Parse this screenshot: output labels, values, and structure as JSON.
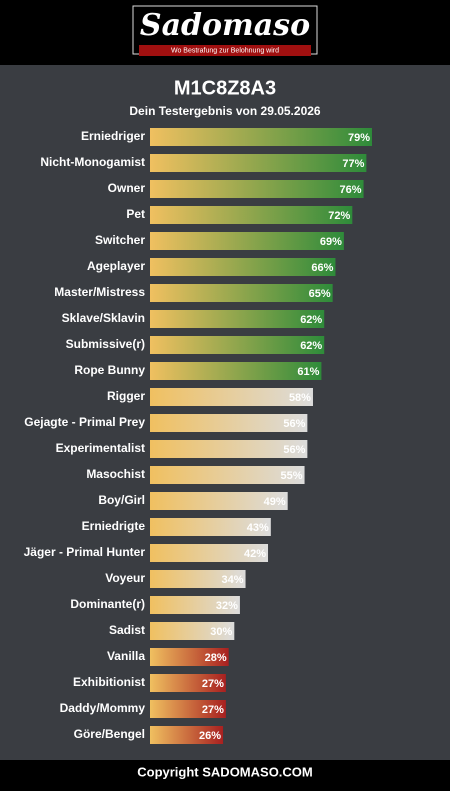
{
  "header": {
    "logo": "Sadomaso",
    "tagline": "Wo Bestrafung zur Belohnung wird"
  },
  "chart_data": {
    "type": "bar",
    "orientation": "horizontal",
    "title": "M1C8Z8A3",
    "subtitle": "Dein Testergebnis von 29.05.2026",
    "categories": [
      "Erniedriger",
      "Nicht-Monogamist",
      "Owner",
      "Pet",
      "Switcher",
      "Ageplayer",
      "Master/Mistress",
      "Sklave/Sklavin",
      "Submissive(r)",
      "Rope Bunny",
      "Rigger",
      "Gejagte - Primal Prey",
      "Experimentalist",
      "Masochist",
      "Boy/Girl",
      "Erniedrigte",
      "Jäger - Primal Hunter",
      "Voyeur",
      "Dominante(r)",
      "Sadist",
      "Vanilla",
      "Exhibitionist",
      "Daddy/Mommy",
      "Göre/Bengel"
    ],
    "values": [
      79,
      77,
      76,
      72,
      69,
      66,
      65,
      62,
      62,
      61,
      58,
      56,
      56,
      55,
      49,
      43,
      42,
      34,
      32,
      30,
      28,
      27,
      27,
      26
    ],
    "value_labels": [
      "79%",
      "77%",
      "76%",
      "72%",
      "69%",
      "66%",
      "65%",
      "62%",
      "62%",
      "61%",
      "58%",
      "56%",
      "56%",
      "55%",
      "49%",
      "43%",
      "42%",
      "34%",
      "32%",
      "30%",
      "28%",
      "27%",
      "27%",
      "26%"
    ],
    "color_start": "#f0c060",
    "colors": [
      "#2e8b3a",
      "#2e8b3a",
      "#2e8b3a",
      "#2e8b3a",
      "#2e8b3a",
      "#2e8b3a",
      "#2e8b3a",
      "#2e8b3a",
      "#2e8b3a",
      "#2e8b3a",
      "#dcdcdc",
      "#dcdcdc",
      "#dcdcdc",
      "#dcdcdc",
      "#dcdcdc",
      "#dcdcdc",
      "#dcdcdc",
      "#dcdcdc",
      "#dcdcdc",
      "#dcdcdc",
      "#a82020",
      "#a82020",
      "#a82020",
      "#a82020"
    ],
    "xlim": [
      0,
      100
    ]
  },
  "footer": {
    "text": "Copyright SADOMASO.COM"
  }
}
